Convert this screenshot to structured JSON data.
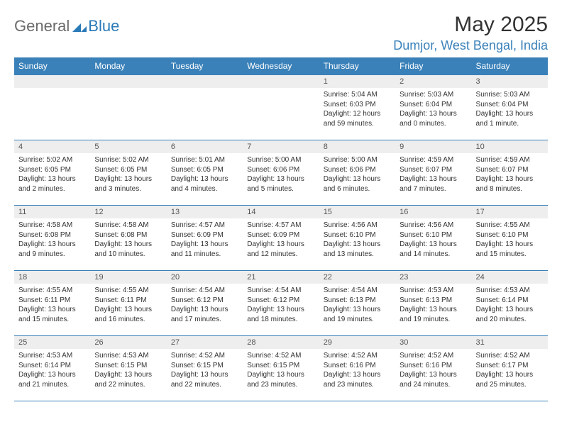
{
  "logo": {
    "text1": "General",
    "text2": "Blue",
    "mark_color": "#2a7ab8"
  },
  "header": {
    "title": "May 2025",
    "location": "Dumjor, West Bengal, India"
  },
  "colors": {
    "header_bg": "#3a81b9",
    "header_text": "#ffffff",
    "row_border": "#3a81b9",
    "daynum_bg": "#eeeeee",
    "body_text": "#333333",
    "location_text": "#3a81b9"
  },
  "days_of_week": [
    "Sunday",
    "Monday",
    "Tuesday",
    "Wednesday",
    "Thursday",
    "Friday",
    "Saturday"
  ],
  "weeks": [
    [
      null,
      null,
      null,
      null,
      {
        "n": "1",
        "sr": "5:04 AM",
        "ss": "6:03 PM",
        "dl": "12 hours and 59 minutes."
      },
      {
        "n": "2",
        "sr": "5:03 AM",
        "ss": "6:04 PM",
        "dl": "13 hours and 0 minutes."
      },
      {
        "n": "3",
        "sr": "5:03 AM",
        "ss": "6:04 PM",
        "dl": "13 hours and 1 minute."
      }
    ],
    [
      {
        "n": "4",
        "sr": "5:02 AM",
        "ss": "6:05 PM",
        "dl": "13 hours and 2 minutes."
      },
      {
        "n": "5",
        "sr": "5:02 AM",
        "ss": "6:05 PM",
        "dl": "13 hours and 3 minutes."
      },
      {
        "n": "6",
        "sr": "5:01 AM",
        "ss": "6:05 PM",
        "dl": "13 hours and 4 minutes."
      },
      {
        "n": "7",
        "sr": "5:00 AM",
        "ss": "6:06 PM",
        "dl": "13 hours and 5 minutes."
      },
      {
        "n": "8",
        "sr": "5:00 AM",
        "ss": "6:06 PM",
        "dl": "13 hours and 6 minutes."
      },
      {
        "n": "9",
        "sr": "4:59 AM",
        "ss": "6:07 PM",
        "dl": "13 hours and 7 minutes."
      },
      {
        "n": "10",
        "sr": "4:59 AM",
        "ss": "6:07 PM",
        "dl": "13 hours and 8 minutes."
      }
    ],
    [
      {
        "n": "11",
        "sr": "4:58 AM",
        "ss": "6:08 PM",
        "dl": "13 hours and 9 minutes."
      },
      {
        "n": "12",
        "sr": "4:58 AM",
        "ss": "6:08 PM",
        "dl": "13 hours and 10 minutes."
      },
      {
        "n": "13",
        "sr": "4:57 AM",
        "ss": "6:09 PM",
        "dl": "13 hours and 11 minutes."
      },
      {
        "n": "14",
        "sr": "4:57 AM",
        "ss": "6:09 PM",
        "dl": "13 hours and 12 minutes."
      },
      {
        "n": "15",
        "sr": "4:56 AM",
        "ss": "6:10 PM",
        "dl": "13 hours and 13 minutes."
      },
      {
        "n": "16",
        "sr": "4:56 AM",
        "ss": "6:10 PM",
        "dl": "13 hours and 14 minutes."
      },
      {
        "n": "17",
        "sr": "4:55 AM",
        "ss": "6:10 PM",
        "dl": "13 hours and 15 minutes."
      }
    ],
    [
      {
        "n": "18",
        "sr": "4:55 AM",
        "ss": "6:11 PM",
        "dl": "13 hours and 15 minutes."
      },
      {
        "n": "19",
        "sr": "4:55 AM",
        "ss": "6:11 PM",
        "dl": "13 hours and 16 minutes."
      },
      {
        "n": "20",
        "sr": "4:54 AM",
        "ss": "6:12 PM",
        "dl": "13 hours and 17 minutes."
      },
      {
        "n": "21",
        "sr": "4:54 AM",
        "ss": "6:12 PM",
        "dl": "13 hours and 18 minutes."
      },
      {
        "n": "22",
        "sr": "4:54 AM",
        "ss": "6:13 PM",
        "dl": "13 hours and 19 minutes."
      },
      {
        "n": "23",
        "sr": "4:53 AM",
        "ss": "6:13 PM",
        "dl": "13 hours and 19 minutes."
      },
      {
        "n": "24",
        "sr": "4:53 AM",
        "ss": "6:14 PM",
        "dl": "13 hours and 20 minutes."
      }
    ],
    [
      {
        "n": "25",
        "sr": "4:53 AM",
        "ss": "6:14 PM",
        "dl": "13 hours and 21 minutes."
      },
      {
        "n": "26",
        "sr": "4:53 AM",
        "ss": "6:15 PM",
        "dl": "13 hours and 22 minutes."
      },
      {
        "n": "27",
        "sr": "4:52 AM",
        "ss": "6:15 PM",
        "dl": "13 hours and 22 minutes."
      },
      {
        "n": "28",
        "sr": "4:52 AM",
        "ss": "6:15 PM",
        "dl": "13 hours and 23 minutes."
      },
      {
        "n": "29",
        "sr": "4:52 AM",
        "ss": "6:16 PM",
        "dl": "13 hours and 23 minutes."
      },
      {
        "n": "30",
        "sr": "4:52 AM",
        "ss": "6:16 PM",
        "dl": "13 hours and 24 minutes."
      },
      {
        "n": "31",
        "sr": "4:52 AM",
        "ss": "6:17 PM",
        "dl": "13 hours and 25 minutes."
      }
    ]
  ],
  "labels": {
    "sunrise": "Sunrise:",
    "sunset": "Sunset:",
    "daylight": "Daylight:"
  }
}
